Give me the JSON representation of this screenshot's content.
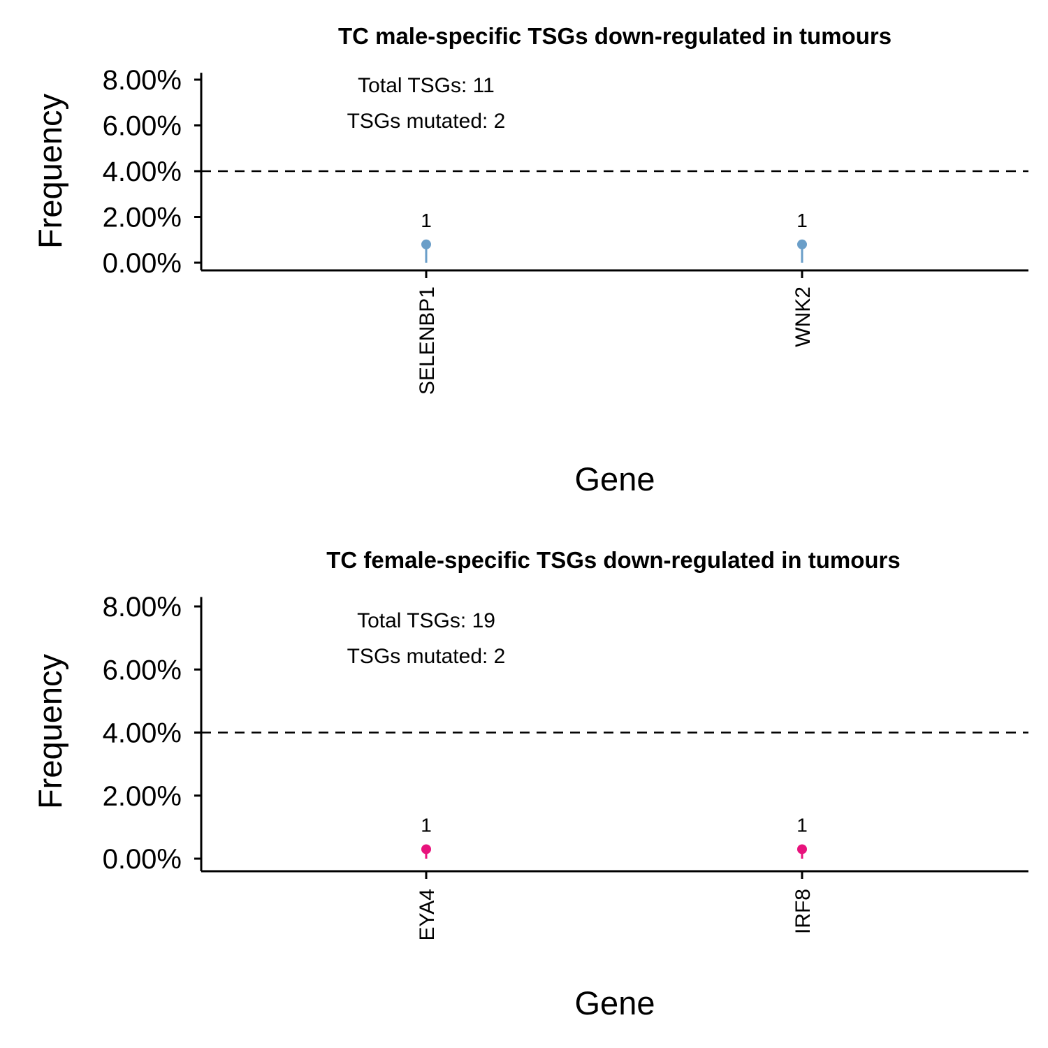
{
  "chart_data": [
    {
      "type": "lollipop",
      "title": "TC male-specific TSGs down-regulated in tumours",
      "xlabel": "Gene",
      "ylabel": "Frequency",
      "ylim": [
        0,
        8.3
      ],
      "y_ticks": [
        "0.00%",
        "2.00%",
        "4.00%",
        "6.00%",
        "8.00%"
      ],
      "threshold": 4.0,
      "categories": [
        "SELENBP1",
        "WNK2"
      ],
      "values": [
        0.8,
        0.8
      ],
      "counts": [
        "1",
        "1"
      ],
      "color": "#6a9ec8",
      "annotations": [
        "Total TSGs:  11",
        "TSGs mutated:  2"
      ]
    },
    {
      "type": "lollipop",
      "title": "TC female-specific TSGs down-regulated in tumours",
      "xlabel": "Gene",
      "ylabel": "Frequency",
      "ylim": [
        0,
        8.3
      ],
      "y_ticks": [
        "0.00%",
        "2.00%",
        "4.00%",
        "6.00%",
        "8.00%"
      ],
      "threshold": 4.0,
      "categories": [
        "EYA4",
        "IRF8"
      ],
      "values": [
        0.3,
        0.3
      ],
      "counts": [
        "1",
        "1"
      ],
      "color": "#e8127c",
      "annotations": [
        "Total TSGs:  19",
        "TSGs mutated:  2"
      ]
    }
  ]
}
